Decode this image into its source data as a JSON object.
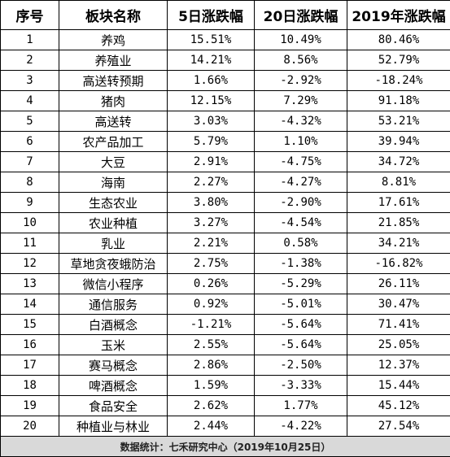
{
  "table": {
    "headers": [
      "序号",
      "板块名称",
      "5日涨跌幅",
      "20日涨跌幅",
      "2019年涨跌幅"
    ],
    "rows": [
      [
        "1",
        "养鸡",
        "15.51%",
        "10.49%",
        "80.46%"
      ],
      [
        "2",
        "养殖业",
        "14.21%",
        "8.56%",
        "52.79%"
      ],
      [
        "3",
        "高送转预期",
        "1.66%",
        "-2.92%",
        "-18.24%"
      ],
      [
        "4",
        "猪肉",
        "12.15%",
        "7.29%",
        "91.18%"
      ],
      [
        "5",
        "高送转",
        "3.03%",
        "-4.32%",
        "53.21%"
      ],
      [
        "6",
        "农产品加工",
        "5.79%",
        "1.10%",
        "39.94%"
      ],
      [
        "7",
        "大豆",
        "2.91%",
        "-4.75%",
        "34.72%"
      ],
      [
        "8",
        "海南",
        "2.27%",
        "-4.27%",
        "8.81%"
      ],
      [
        "9",
        "生态农业",
        "3.80%",
        "-2.90%",
        "17.61%"
      ],
      [
        "10",
        "农业种植",
        "3.27%",
        "-4.54%",
        "21.85%"
      ],
      [
        "11",
        "乳业",
        "2.21%",
        "0.58%",
        "34.21%"
      ],
      [
        "12",
        "草地贪夜蛾防治",
        "2.75%",
        "-1.38%",
        "-16.82%"
      ],
      [
        "13",
        "微信小程序",
        "0.26%",
        "-5.29%",
        "26.11%"
      ],
      [
        "14",
        "通信服务",
        "0.92%",
        "-5.01%",
        "30.47%"
      ],
      [
        "15",
        "白酒概念",
        "-1.21%",
        "-5.64%",
        "71.41%"
      ],
      [
        "16",
        "玉米",
        "2.55%",
        "-5.64%",
        "25.05%"
      ],
      [
        "17",
        "赛马概念",
        "2.86%",
        "-2.50%",
        "12.37%"
      ],
      [
        "18",
        "啤酒概念",
        "1.59%",
        "-3.33%",
        "15.44%"
      ],
      [
        "19",
        "食品安全",
        "2.62%",
        "1.77%",
        "45.12%"
      ],
      [
        "20",
        "种植业与林业",
        "2.44%",
        "-4.22%",
        "27.54%"
      ]
    ],
    "footer": "数据统计：七禾研究中心（2019年10月25日）"
  },
  "colors": {
    "border": "#000000",
    "footer_bg": "#d9d9d9"
  }
}
